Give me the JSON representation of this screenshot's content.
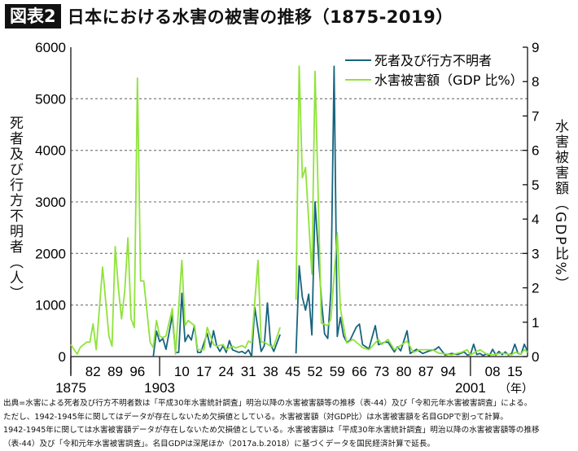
{
  "title": {
    "badge": "図表2",
    "text": "日本における水害の被害の推移（1875-2019）"
  },
  "chart_data": {
    "type": "line",
    "title": "日本における水害の被害の推移（1875-2019）",
    "ylabel_left": "死者及び行方不明者（人）",
    "ylabel_right": "水害被害額（GDP比%）",
    "xlabel": "(年)",
    "xlim": [
      1875,
      2019
    ],
    "ylim_left": [
      0,
      6000
    ],
    "ylim_right": [
      0,
      9
    ],
    "grid": "horizontal dashed",
    "legend_position": "top-right",
    "left_ticks": [
      "0",
      "1000",
      "2000",
      "3000",
      "4000",
      "5000",
      "6000"
    ],
    "right_ticks": [
      "0",
      "1",
      "2",
      "3",
      "4",
      "5",
      "6",
      "7",
      "8",
      "9"
    ],
    "x_ticks_row1": [
      {
        "year": 1882,
        "label": "82"
      },
      {
        "year": 1889,
        "label": "89"
      },
      {
        "year": 1896,
        "label": "96"
      },
      {
        "year": 1910,
        "label": "10"
      },
      {
        "year": 1917,
        "label": "17"
      },
      {
        "year": 1924,
        "label": "24"
      },
      {
        "year": 1931,
        "label": "31"
      },
      {
        "year": 1938,
        "label": "38"
      },
      {
        "year": 1945,
        "label": "45"
      },
      {
        "year": 1952,
        "label": "52"
      },
      {
        "year": 1959,
        "label": "59"
      },
      {
        "year": 1966,
        "label": "66"
      },
      {
        "year": 1973,
        "label": "73"
      },
      {
        "year": 1980,
        "label": "80"
      },
      {
        "year": 1987,
        "label": "87"
      },
      {
        "year": 1994,
        "label": "94"
      },
      {
        "year": 2008,
        "label": "08"
      },
      {
        "year": 2015,
        "label": "15"
      }
    ],
    "x_ticks_row2": [
      {
        "year": 1875,
        "label": "1875"
      },
      {
        "year": 1903,
        "label": "1903"
      },
      {
        "year": 2001,
        "label": "2001"
      }
    ],
    "x_unit_label": "（年）",
    "missing_years": [
      1942,
      1943,
      1944,
      1945
    ],
    "series": [
      {
        "name": "死者及び行方不明者",
        "axis": "left",
        "color": "#17647f",
        "points": [
          [
            1901,
            0
          ],
          [
            1902,
            495
          ],
          [
            1903,
            290
          ],
          [
            1904,
            350
          ],
          [
            1905,
            140
          ],
          [
            1907,
            800
          ],
          [
            1908,
            80
          ],
          [
            1909,
            80
          ],
          [
            1910,
            1230
          ],
          [
            1911,
            290
          ],
          [
            1912,
            420
          ],
          [
            1913,
            320
          ],
          [
            1914,
            600
          ],
          [
            1915,
            80
          ],
          [
            1916,
            80
          ],
          [
            1918,
            450
          ],
          [
            1919,
            180
          ],
          [
            1920,
            500
          ],
          [
            1921,
            210
          ],
          [
            1922,
            100
          ],
          [
            1923,
            210
          ],
          [
            1924,
            80
          ],
          [
            1925,
            310
          ],
          [
            1926,
            130
          ],
          [
            1928,
            80
          ],
          [
            1929,
            100
          ],
          [
            1930,
            60
          ],
          [
            1931,
            130
          ],
          [
            1932,
            0
          ],
          [
            1933,
            950
          ],
          [
            1935,
            100
          ],
          [
            1936,
            210
          ],
          [
            1937,
            1040
          ],
          [
            1938,
            240
          ],
          [
            1939,
            100
          ],
          [
            1941,
            430
          ],
          null,
          [
            1946,
            60
          ],
          [
            1947,
            1760
          ],
          [
            1948,
            1150
          ],
          [
            1949,
            900
          ],
          [
            1950,
            1210
          ],
          [
            1951,
            420
          ],
          [
            1952,
            3000
          ],
          [
            1954,
            1100
          ],
          [
            1955,
            440
          ],
          [
            1956,
            350
          ],
          [
            1957,
            1270
          ],
          [
            1958,
            5630
          ],
          [
            1959,
            390
          ],
          [
            1960,
            760
          ],
          [
            1961,
            400
          ],
          [
            1962,
            280
          ],
          [
            1963,
            310
          ],
          [
            1965,
            570
          ],
          [
            1966,
            630
          ],
          [
            1967,
            230
          ],
          [
            1969,
            150
          ],
          [
            1971,
            600
          ],
          [
            1972,
            230
          ],
          [
            1974,
            280
          ],
          [
            1975,
            280
          ],
          [
            1977,
            90
          ],
          [
            1978,
            190
          ],
          [
            1979,
            110
          ],
          [
            1981,
            500
          ],
          [
            1982,
            60
          ],
          [
            1984,
            140
          ],
          [
            1986,
            60
          ],
          [
            1988,
            110
          ],
          [
            1990,
            140
          ],
          [
            1991,
            190
          ],
          [
            1993,
            30
          ],
          [
            1995,
            60
          ],
          [
            1997,
            40
          ],
          [
            1999,
            90
          ],
          [
            2000,
            30
          ],
          [
            2001,
            40
          ],
          [
            2002,
            240
          ],
          [
            2003,
            40
          ],
          [
            2004,
            60
          ],
          [
            2005,
            20
          ],
          [
            2006,
            50
          ],
          [
            2007,
            20
          ],
          [
            2008,
            140
          ],
          [
            2009,
            30
          ],
          [
            2010,
            100
          ],
          [
            2011,
            40
          ],
          [
            2012,
            90
          ],
          [
            2013,
            30
          ],
          [
            2014,
            60
          ],
          [
            2015,
            240
          ],
          [
            2016,
            60
          ],
          [
            2017,
            50
          ],
          [
            2018,
            240
          ],
          [
            2019,
            100
          ]
        ]
      },
      {
        "name": "水害被害額（GDP 比%）",
        "axis": "right",
        "color": "#8fe33a",
        "points": [
          [
            1875,
            0.35
          ],
          [
            1877,
            0.07
          ],
          [
            1878,
            0.27
          ],
          [
            1880,
            0.42
          ],
          [
            1881,
            0.42
          ],
          [
            1882,
            0.95
          ],
          [
            1883,
            0.2
          ],
          [
            1885,
            2.6
          ],
          [
            1887,
            0.6
          ],
          [
            1888,
            0.3
          ],
          [
            1889,
            3.2
          ],
          [
            1890,
            2.0
          ],
          [
            1891,
            1.1
          ],
          [
            1892,
            1.9
          ],
          [
            1893,
            3.45
          ],
          [
            1894,
            1.1
          ],
          [
            1895,
            0.85
          ],
          [
            1896,
            8.1
          ],
          [
            1897,
            2.2
          ],
          [
            1898,
            2.2
          ],
          [
            1900,
            0.42
          ],
          [
            1901,
            0.26
          ],
          [
            1902,
            1.05
          ],
          [
            1903,
            0.6
          ],
          [
            1904,
            0.55
          ],
          [
            1905,
            0.6
          ],
          [
            1907,
            1.4
          ],
          [
            1908,
            0.07
          ],
          [
            1910,
            2.8
          ],
          [
            1911,
            0.9
          ],
          [
            1912,
            1.05
          ],
          [
            1914,
            0.9
          ],
          [
            1915,
            0.2
          ],
          [
            1917,
            0.2
          ],
          [
            1918,
            0.85
          ],
          [
            1920,
            0.35
          ],
          [
            1921,
            0.3
          ],
          [
            1923,
            0.35
          ],
          [
            1924,
            0.2
          ],
          [
            1926,
            0.3
          ],
          [
            1927,
            0.25
          ],
          [
            1929,
            0.32
          ],
          [
            1930,
            0.25
          ],
          [
            1931,
            0.45
          ],
          [
            1932,
            0.4
          ],
          [
            1934,
            2.8
          ],
          [
            1935,
            0.42
          ],
          [
            1936,
            0.42
          ],
          [
            1938,
            0.3
          ],
          [
            1939,
            0.3
          ],
          [
            1941,
            0.85
          ],
          null,
          [
            1946,
            1.65
          ],
          [
            1947,
            8.45
          ],
          [
            1948,
            5.2
          ],
          [
            1949,
            5.5
          ],
          [
            1951,
            2.4
          ],
          [
            1952,
            8.3
          ],
          [
            1954,
            0.97
          ],
          [
            1956,
            0.9
          ],
          [
            1957,
            1.1
          ],
          [
            1959,
            3.6
          ],
          [
            1960,
            1.4
          ],
          [
            1962,
            0.39
          ],
          [
            1964,
            0.5
          ],
          [
            1967,
            0.26
          ],
          [
            1969,
            0.2
          ],
          [
            1972,
            0.5
          ],
          [
            1973,
            0.35
          ],
          [
            1975,
            0.5
          ],
          [
            1977,
            0.2
          ],
          [
            1981,
            0.45
          ],
          [
            1983,
            0.12
          ],
          [
            1985,
            0.2
          ],
          [
            1989,
            0.2
          ],
          [
            1991,
            0.1
          ],
          [
            1993,
            0.08
          ],
          [
            1995,
            0.05
          ],
          [
            1998,
            0.12
          ],
          [
            2000,
            0.2
          ],
          [
            2001,
            0.05
          ],
          [
            2004,
            0.2
          ],
          [
            2006,
            0.08
          ],
          [
            2008,
            0.05
          ],
          [
            2011,
            0.1
          ],
          [
            2014,
            0.05
          ],
          [
            2015,
            0.12
          ],
          [
            2017,
            0.08
          ],
          [
            2018,
            0.2
          ],
          [
            2019,
            0.12
          ]
        ]
      }
    ]
  },
  "footnotes": [
    "出典=水害による死者及び行方不明者数は「平成30年水害統計調査」明治以降の水害被害額等の推移（表-44）及び「令和元年水害被害調査」による。",
    "ただし、1942-1945年に関してはデータが存在しないため欠損値としている。水害被害額（対GDP比）は水害被害額を名目GDPで割って計算。",
    "1942-1945年に関しては水害被害額データが存在しないため欠損値としている。水害被害額は「平成30年水害統計調査」明治以降の水害被害額等の推移",
    "（表-44）及び「令和元年水害被害調査」。名目GDPは深尾ほか（2017a.b.2018）に基づくデータを国民経済計算で延長。"
  ]
}
